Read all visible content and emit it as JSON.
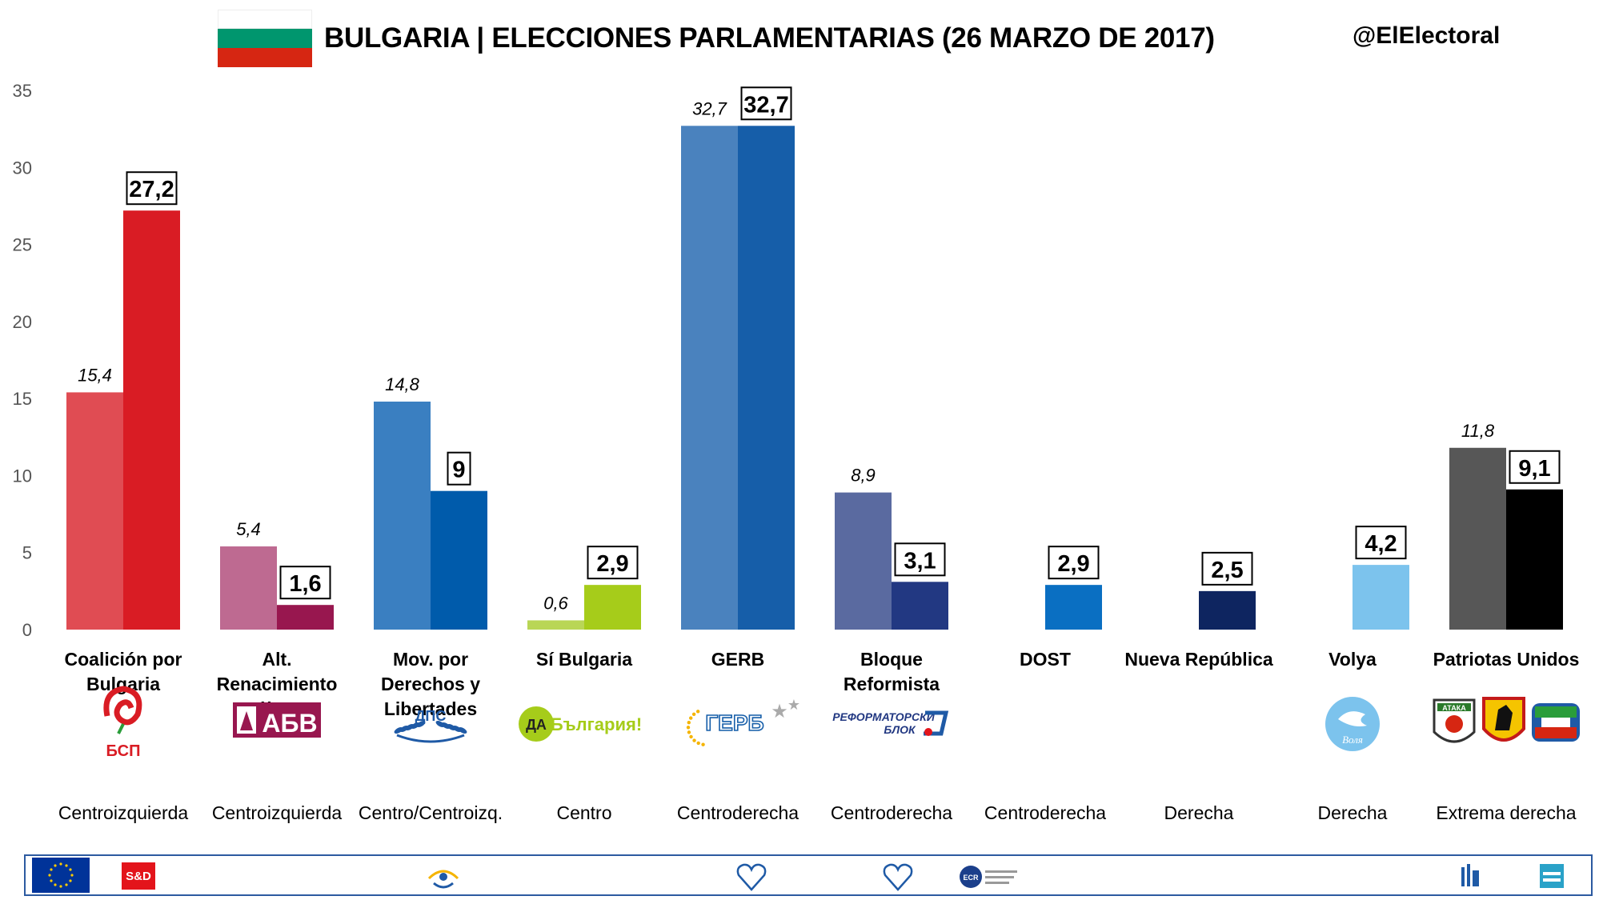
{
  "header": {
    "title": "BULGARIA | ELECCIONES PARLAMENTARIAS (26 MARZO DE 2017)",
    "handle": "@ElElectoral",
    "flag_colors": [
      "#ffffff",
      "#00966e",
      "#d62612"
    ]
  },
  "chart_data": {
    "type": "bar",
    "title": "BULGARIA | ELECCIONES PARLAMENTARIAS (26 MARZO DE 2017)",
    "ylim": [
      0,
      35
    ],
    "yticks": [
      "0",
      "5",
      "10",
      "15",
      "20",
      "25",
      "30",
      "35"
    ],
    "grid": false,
    "categories": [
      {
        "name_lines": [
          "Coalición por",
          "Bulgaria"
        ],
        "ideology": "Centroizquierda",
        "prev": 15.4,
        "prev_label": "15,4",
        "cur": 27.2,
        "cur_label": "27,2",
        "prev_color": "#e04c53",
        "cur_color": "#d91c24",
        "logo": "bsp-rose-logo"
      },
      {
        "name_lines": [
          "Alt.",
          "Renacimiento",
          "Búlgaro"
        ],
        "ideology": "Centroizquierda",
        "prev": 5.4,
        "prev_label": "5,4",
        "cur": 1.6,
        "cur_label": "1,6",
        "prev_color": "#be6a91",
        "cur_color": "#98174f",
        "logo": "abv-lion-logo"
      },
      {
        "name_lines": [
          "Mov. por",
          "Derechos y",
          "Libertades"
        ],
        "ideology": "Centro/Centroizq.",
        "prev": 14.8,
        "prev_label": "14,8",
        "cur": 9,
        "cur_label": "9",
        "prev_color": "#3a7fc1",
        "cur_color": "#005bab",
        "logo": "dps-laurel-logo"
      },
      {
        "name_lines": [
          "Sí Bulgaria"
        ],
        "ideology": "Centro",
        "prev": 0.6,
        "prev_label": "0,6",
        "cur": 2.9,
        "cur_label": "2,9",
        "prev_color": "#b9d656",
        "cur_color": "#a6cc1a",
        "logo": "da-bulgaria-logo"
      },
      {
        "name_lines": [
          "GERB"
        ],
        "ideology": "Centroderecha",
        "prev": 32.7,
        "prev_label": "32,7",
        "cur": 32.7,
        "cur_label": "32,7",
        "prev_color": "#4a82be",
        "cur_color": "#165ea9",
        "logo": "gerb-stars-logo"
      },
      {
        "name_lines": [
          "Bloque",
          "Reformista"
        ],
        "ideology": "Centroderecha",
        "prev": 8.9,
        "prev_label": "8,9",
        "cur": 3.1,
        "cur_label": "3,1",
        "prev_color": "#5a6aa0",
        "cur_color": "#223882",
        "logo": "reformist-bloc-logo"
      },
      {
        "name_lines": [
          "DOST"
        ],
        "ideology": "Centroderecha",
        "prev": null,
        "prev_label": "",
        "cur": 2.9,
        "cur_label": "2,9",
        "prev_color": "#ffffff",
        "cur_color": "#0a6fc2",
        "logo": ""
      },
      {
        "name_lines": [
          "Nueva República"
        ],
        "ideology": "Derecha",
        "prev": null,
        "prev_label": "",
        "cur": 2.5,
        "cur_label": "2,5",
        "prev_color": "#ffffff",
        "cur_color": "#0e2560",
        "logo": ""
      },
      {
        "name_lines": [
          "Volya"
        ],
        "ideology": "Derecha",
        "prev": null,
        "prev_label": "",
        "cur": 4.2,
        "cur_label": "4,2",
        "prev_color": "#ffffff",
        "cur_color": "#7cc3ed",
        "logo": "volya-dove-logo"
      },
      {
        "name_lines": [
          "Patriotas Unidos"
        ],
        "ideology": "Extrema derecha",
        "prev": 11.8,
        "prev_label": "11,8",
        "cur": 9.1,
        "cur_label": "9,1",
        "prev_color": "#575757",
        "cur_color": "#000000",
        "logo": "united-patriots-logos"
      }
    ]
  },
  "logos": {
    "bsp": "БСП",
    "abv": "АБВ",
    "dps": "ДПС",
    "da_badge": "ДА",
    "da_text": "България!",
    "gerb": "ГЕРБ",
    "reform_line1": "РЕФОРМАТОРСКИ",
    "reform_line2": "БЛОК",
    "volya": "Воля",
    "ataka": "АТАКА"
  },
  "footer": {
    "sd": "S&D",
    "logos": [
      "eu-flag-icon",
      "sd-logo",
      "epp-logo",
      "alde-heart-logo",
      "alde-heart-logo-2",
      "ecr-logo",
      "ens-logo",
      "efdd-logo"
    ]
  }
}
